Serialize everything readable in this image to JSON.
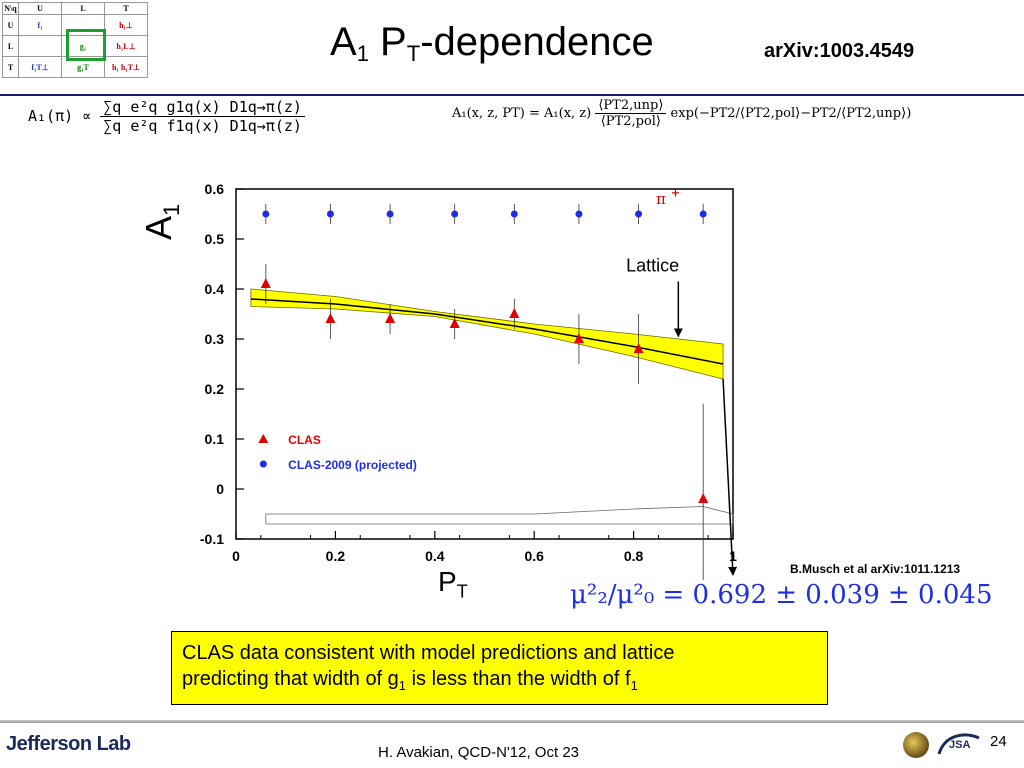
{
  "corner_table": {
    "n_q": "N\\q",
    "col_headers": [
      "U",
      "L",
      "T"
    ],
    "rows": [
      {
        "label": "U",
        "cells": [
          "f₁",
          "",
          "h₁⊥"
        ]
      },
      {
        "label": "L",
        "cells": [
          "",
          "g₁",
          "h₁L⊥"
        ]
      },
      {
        "label": "T",
        "cells": [
          "f₁T⊥",
          "g₁T",
          "h₁ h₁T⊥"
        ]
      }
    ]
  },
  "title": {
    "a": "A",
    "a_sub": "1",
    "p": " P",
    "p_sub": "T",
    "rest": "-dependence"
  },
  "arxiv": "arXiv:1003.4549",
  "formula_left": {
    "lhs": "A₁(π) ∝",
    "num": "∑q e²q g1q(x) D1q→π(z)",
    "den": "∑q e²q f1q(x) D1q→π(z)"
  },
  "formula_right": {
    "lhs": "A₁(x, z, PT) = A₁(x, z)",
    "num": "⟨PT2,unp⟩",
    "den": "⟨PT2,pol⟩",
    "tail": "exp(−PT2/⟨PT2,pol⟩−PT2/⟨PT2,unp⟩)"
  },
  "chart_data": {
    "type": "scatter",
    "ylabel": "A",
    "ylabel_sub": "1",
    "xlabel": "P",
    "xlabel_sub": "T",
    "xlim": [
      0,
      1
    ],
    "ylim": [
      -0.1,
      0.6
    ],
    "x_ticks": [
      "0",
      "0.2",
      "0.4",
      "0.6",
      "0.8",
      "1"
    ],
    "y_ticks": [
      "-0.1",
      "0",
      "0.1",
      "0.2",
      "0.3",
      "0.4",
      "0.5",
      "0.6"
    ],
    "series": [
      {
        "name": "CLAS",
        "color": "#e00000",
        "marker": "triangle",
        "x": [
          0.06,
          0.19,
          0.31,
          0.44,
          0.56,
          0.69,
          0.81,
          0.94
        ],
        "y": [
          0.41,
          0.34,
          0.34,
          0.33,
          0.35,
          0.3,
          0.28,
          -0.02
        ],
        "err": [
          0.04,
          0.04,
          0.03,
          0.03,
          0.03,
          0.05,
          0.07,
          0.19
        ]
      },
      {
        "name": "CLAS-2009 (projected)",
        "color": "#1f2ee6",
        "marker": "circle",
        "x": [
          0.06,
          0.19,
          0.31,
          0.44,
          0.56,
          0.69,
          0.81,
          0.94
        ],
        "y": [
          0.55,
          0.55,
          0.55,
          0.55,
          0.55,
          0.55,
          0.55,
          0.55
        ],
        "err": [
          0.02,
          0.02,
          0.02,
          0.02,
          0.02,
          0.02,
          0.02,
          0.02
        ]
      }
    ],
    "model_curve": {
      "x": [
        0.03,
        0.2,
        0.4,
        0.6,
        0.8,
        0.98
      ],
      "y": [
        0.38,
        0.37,
        0.35,
        0.32,
        0.285,
        0.25
      ]
    },
    "band_upper": {
      "x": [
        0.03,
        0.2,
        0.4,
        0.6,
        0.8,
        0.98
      ],
      "y": [
        0.4,
        0.385,
        0.355,
        0.33,
        0.31,
        0.29
      ]
    },
    "band_lower": {
      "x": [
        0.03,
        0.2,
        0.4,
        0.6,
        0.8,
        0.98
      ],
      "y": [
        0.365,
        0.36,
        0.345,
        0.31,
        0.265,
        0.22
      ]
    },
    "systematic_band": {
      "x": [
        0.06,
        0.2,
        0.4,
        0.6,
        0.8,
        0.94,
        1.0
      ],
      "y": [
        -0.05,
        -0.05,
        -0.05,
        -0.05,
        -0.04,
        -0.035,
        -0.05
      ]
    },
    "pi_label": "π",
    "pi_sup": "+",
    "lattice_label": "Lattice",
    "band_color": "#ffff00",
    "legend_position": "bottom-left"
  },
  "musch_ref": "B.Musch et al arXiv:1011.1213",
  "mu_ratio": "μ²₂/μ²₀ = 0.692 ± 0.039 ± 0.045",
  "note": {
    "line1": "CLAS data consistent with model predictions and lattice",
    "line2a": "predicting  that width of g",
    "line2_sub1": "1",
    "line2b": " is less than the width of f",
    "line2_sub2": "1"
  },
  "footer": {
    "lab": "Jefferson Lab",
    "credit": "H. Avakian, QCD-N'12,  Oct 23",
    "page": "24",
    "jsa": "JSA"
  }
}
